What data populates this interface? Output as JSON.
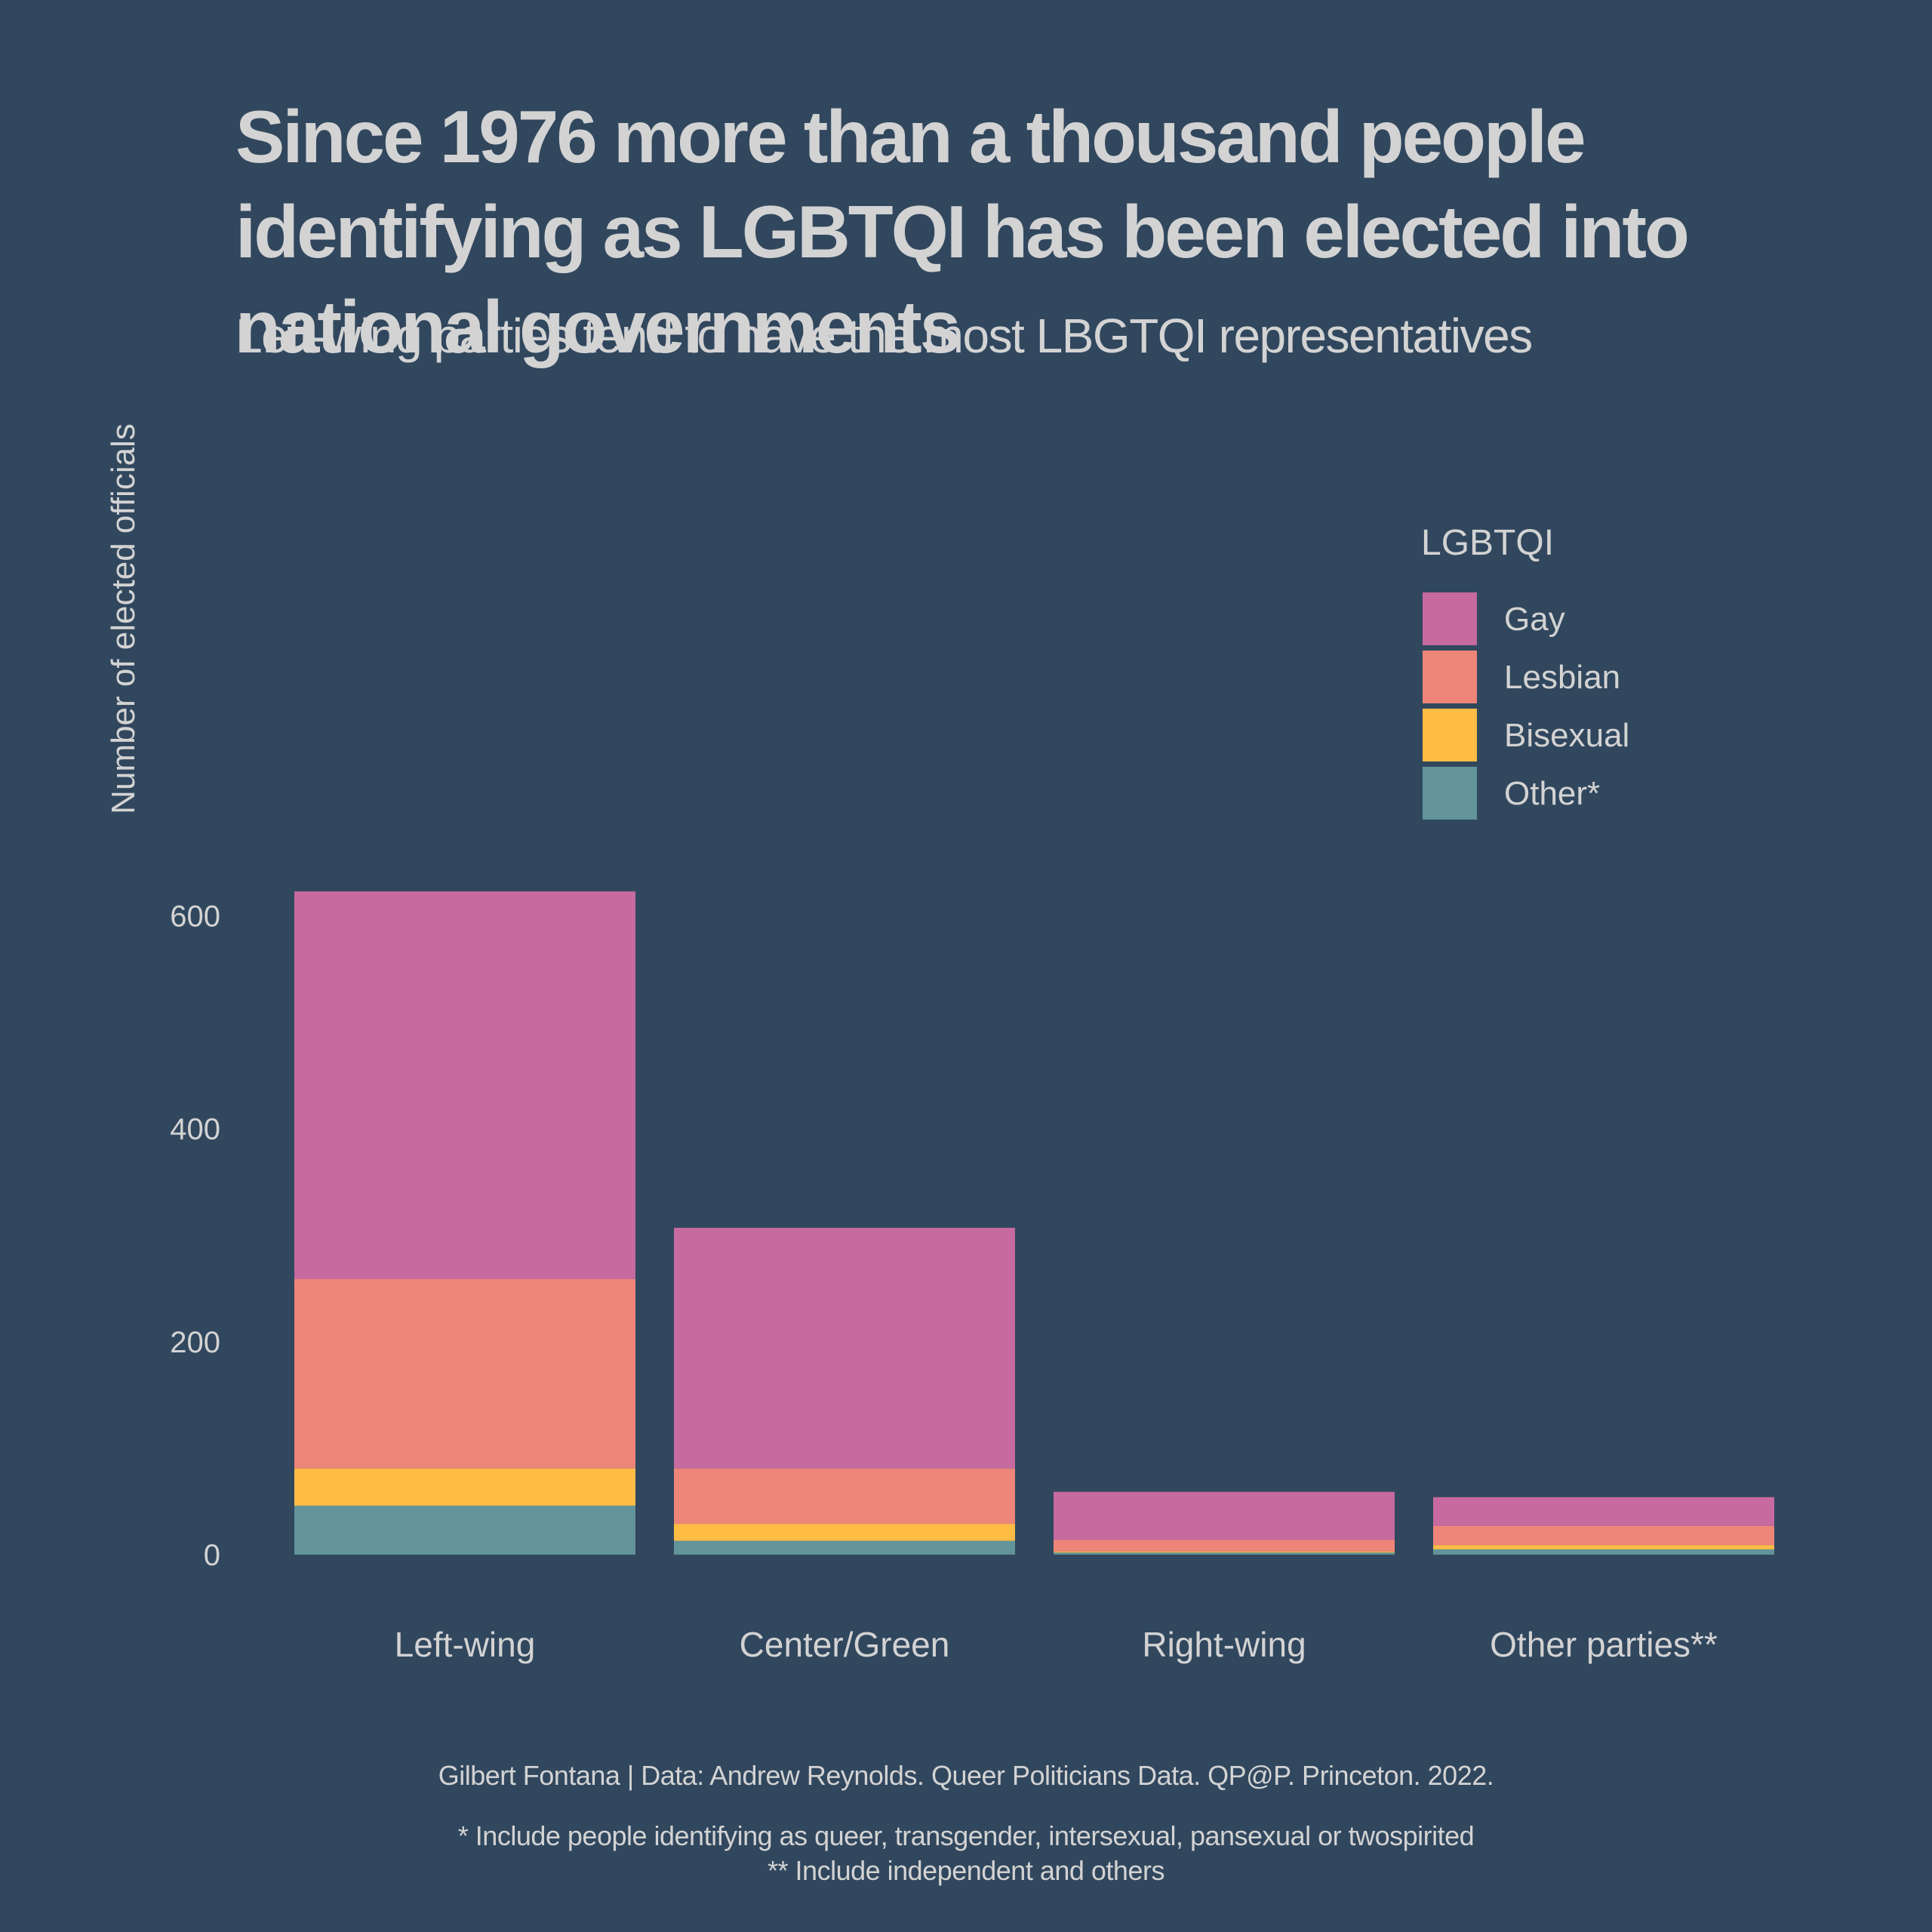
{
  "chart_data": {
    "type": "bar",
    "stacked": true,
    "title": "Since 1976 more than a thousand people identifying as LGBTQI has been elected into national governments",
    "subtitle": "Left-wing parties tend to have the most LBGTQI representatives",
    "xlabel": "",
    "ylabel": "Number of elected officials",
    "ylim": [
      0,
      640
    ],
    "yticks": [
      0,
      200,
      400,
      600
    ],
    "grid": false,
    "legend_position": "top-right",
    "legend_title": "LGBTQI",
    "categories": [
      "Left-wing",
      "Center/Green",
      "Right-wing",
      "Other parties**"
    ],
    "series": [
      {
        "name": "Other*",
        "color": "#62949A",
        "values": [
          46,
          13,
          2,
          5
        ]
      },
      {
        "name": "Bisexual",
        "color": "#FFBC45",
        "values": [
          35,
          16,
          1,
          4
        ]
      },
      {
        "name": "Lesbian",
        "color": "#EE8579",
        "values": [
          178,
          52,
          11,
          18
        ]
      },
      {
        "name": "Gay",
        "color": "#C66A9F",
        "values": [
          364,
          226,
          45,
          27
        ]
      }
    ],
    "legend_order": [
      "Gay",
      "Lesbian",
      "Bisexual",
      "Other*"
    ],
    "caption": "Gilbert Fontana | Data: Andrew Reynolds. Queer Politicians Data. QP@P. Princeton. 2022.",
    "footnotes": [
      "* Include people identifying as queer, transgender, intersexual, pansexual or twospirited",
      "** Include independent and others"
    ]
  },
  "colors": {
    "background": "#31475E",
    "text": "#D3D3D3"
  }
}
